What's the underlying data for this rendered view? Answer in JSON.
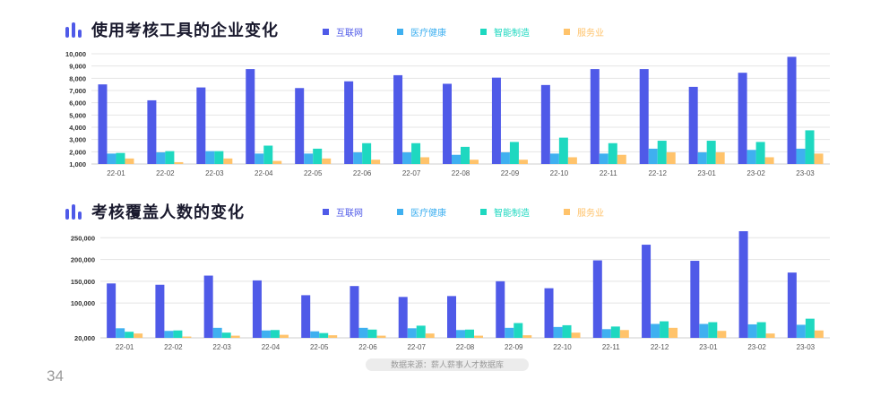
{
  "colors": {
    "internet": "#4f5ae8",
    "healthcare": "#3fb0f0",
    "manufacturing": "#1ed8c0",
    "service": "#ffc36b",
    "grid": "#e4e4e4",
    "axis": "#cfcfcf"
  },
  "footer": {
    "page_number": "34",
    "source": "数据来源：薪人薪事人才数据库"
  },
  "chart_data": [
    {
      "type": "bar",
      "title": "使用考核工具的企业变化",
      "categories": [
        "22-01",
        "22-02",
        "22-03",
        "22-04",
        "22-05",
        "22-06",
        "22-07",
        "22-08",
        "22-09",
        "22-10",
        "22-11",
        "22-12",
        "23-01",
        "23-02",
        "23-03"
      ],
      "series": [
        {
          "name": "互联网",
          "values": [
            7500,
            6200,
            7250,
            8750,
            7200,
            7750,
            8250,
            7550,
            8050,
            7450,
            8750,
            8750,
            7300,
            8450,
            9750
          ]
        },
        {
          "name": "医疗健康",
          "values": [
            1850,
            1950,
            2050,
            1850,
            1850,
            1950,
            1950,
            1750,
            1950,
            1850,
            1850,
            2250,
            1950,
            2150,
            2250
          ]
        },
        {
          "name": "智能制造",
          "values": [
            1900,
            2050,
            2050,
            2500,
            2250,
            2700,
            2700,
            2400,
            2800,
            3150,
            2700,
            2900,
            2900,
            2800,
            3750
          ]
        },
        {
          "name": "服务业",
          "values": [
            1450,
            1150,
            1450,
            1250,
            1450,
            1350,
            1550,
            1350,
            1350,
            1550,
            1750,
            1950,
            1950,
            1550,
            1850
          ]
        }
      ],
      "yticks": [
        "1,000",
        "2,000",
        "3,000",
        "4,000",
        "5,000",
        "6,000",
        "7,000",
        "8,000",
        "9,000",
        "10,000"
      ],
      "ylim": [
        1000,
        10000
      ]
    },
    {
      "type": "bar",
      "title": "考核覆盖人数的变化",
      "categories": [
        "22-01",
        "22-02",
        "22-03",
        "22-04",
        "22-05",
        "22-06",
        "22-07",
        "22-08",
        "22-09",
        "22-10",
        "22-11",
        "22-12",
        "23-01",
        "23-02",
        "23-03"
      ],
      "series": [
        {
          "name": "互联网",
          "values": [
            145000,
            142000,
            163000,
            152000,
            118000,
            139000,
            114000,
            116000,
            150000,
            134000,
            198000,
            234000,
            197000,
            265000,
            170000
          ]
        },
        {
          "name": "医疗健康",
          "values": [
            42000,
            36000,
            43000,
            37000,
            35000,
            43000,
            42000,
            38000,
            43000,
            45000,
            40000,
            52000,
            52000,
            51000,
            50000
          ]
        },
        {
          "name": "智能制造",
          "values": [
            34000,
            37000,
            32000,
            38000,
            31000,
            39000,
            48000,
            39000,
            54000,
            49000,
            46000,
            58000,
            56000,
            56000,
            64000
          ]
        },
        {
          "name": "服务业",
          "values": [
            30000,
            23000,
            25000,
            27000,
            26000,
            25000,
            30000,
            25000,
            26000,
            32000,
            38000,
            43000,
            36000,
            30000,
            37000
          ]
        }
      ],
      "yticks": [
        "20,000",
        "100,000",
        "150,000",
        "200,000",
        "250,000"
      ],
      "ytick_values": [
        20000,
        100000,
        150000,
        200000,
        250000
      ],
      "ylim": [
        20000,
        265000
      ]
    }
  ]
}
